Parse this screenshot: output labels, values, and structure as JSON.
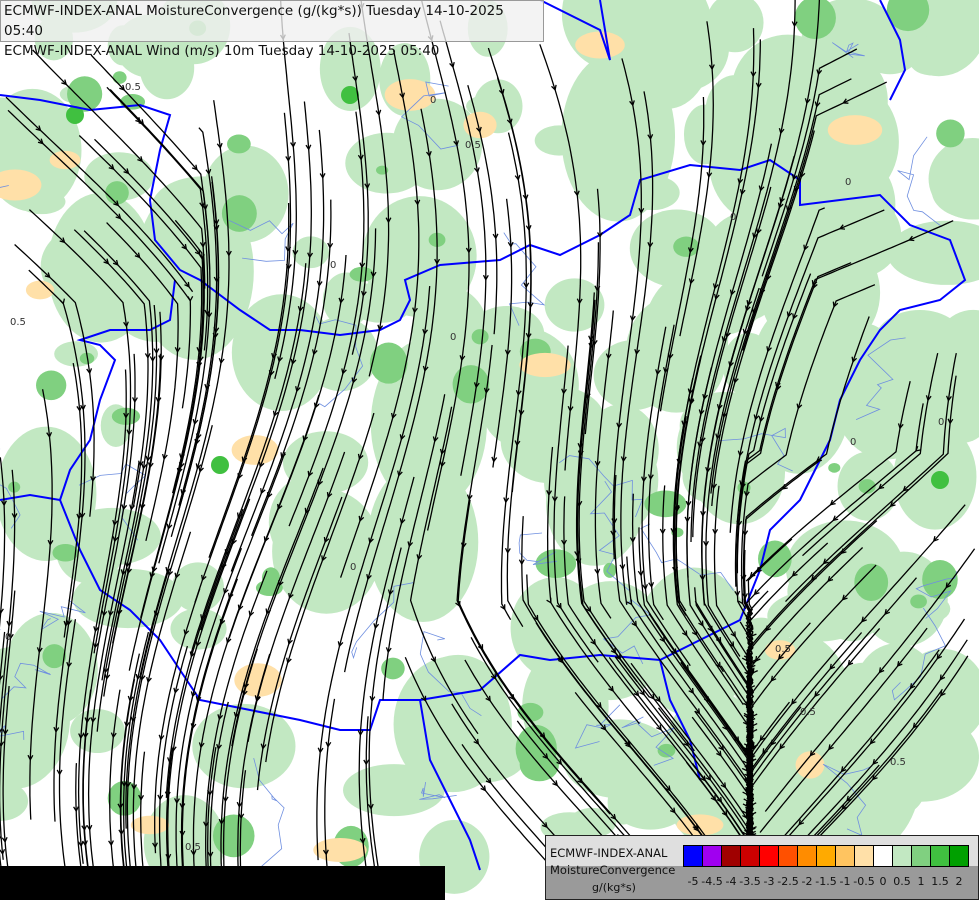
{
  "header": {
    "line1": "ECMWF-INDEX-ANAL MoistureConvergence (g/(kg*s)) Tuesday 14-10-2025 05:40",
    "line2": "ECMWF-INDEX-ANAL Wind (m/s) 10m Tuesday 14-10-2025 05:40"
  },
  "legend": {
    "line1": "ECMWF-INDEX-ANAL",
    "line2": "MoistureConvergence",
    "unit": "g/(kg*s)",
    "colors": [
      "#0000ff",
      "#a000f0",
      "#a00000",
      "#cc0000",
      "#ff0000",
      "#ff5000",
      "#ff8c00",
      "#ffaa00",
      "#ffc460",
      "#ffe0a8",
      "#ffffff",
      "#c2e8c2",
      "#80d080",
      "#40c040",
      "#00a000"
    ],
    "labels": [
      "-5",
      "-4.5",
      "-4",
      "-3.5",
      "-3",
      "-2.5",
      "-2",
      "-1.5",
      "-1",
      "-0.5",
      "0",
      "0.5",
      "1",
      "1.5",
      "2"
    ]
  },
  "map": {
    "contour_labels": [
      "0",
      "0.5"
    ],
    "colors": {
      "border": "#0000ff",
      "river": "#6f8fe0",
      "streamline": "#000000",
      "convergence_low": "#c2e8c2",
      "convergence_mid": "#80d080",
      "convergence_high": "#40c040",
      "divergence": "#ffe0a8"
    }
  }
}
